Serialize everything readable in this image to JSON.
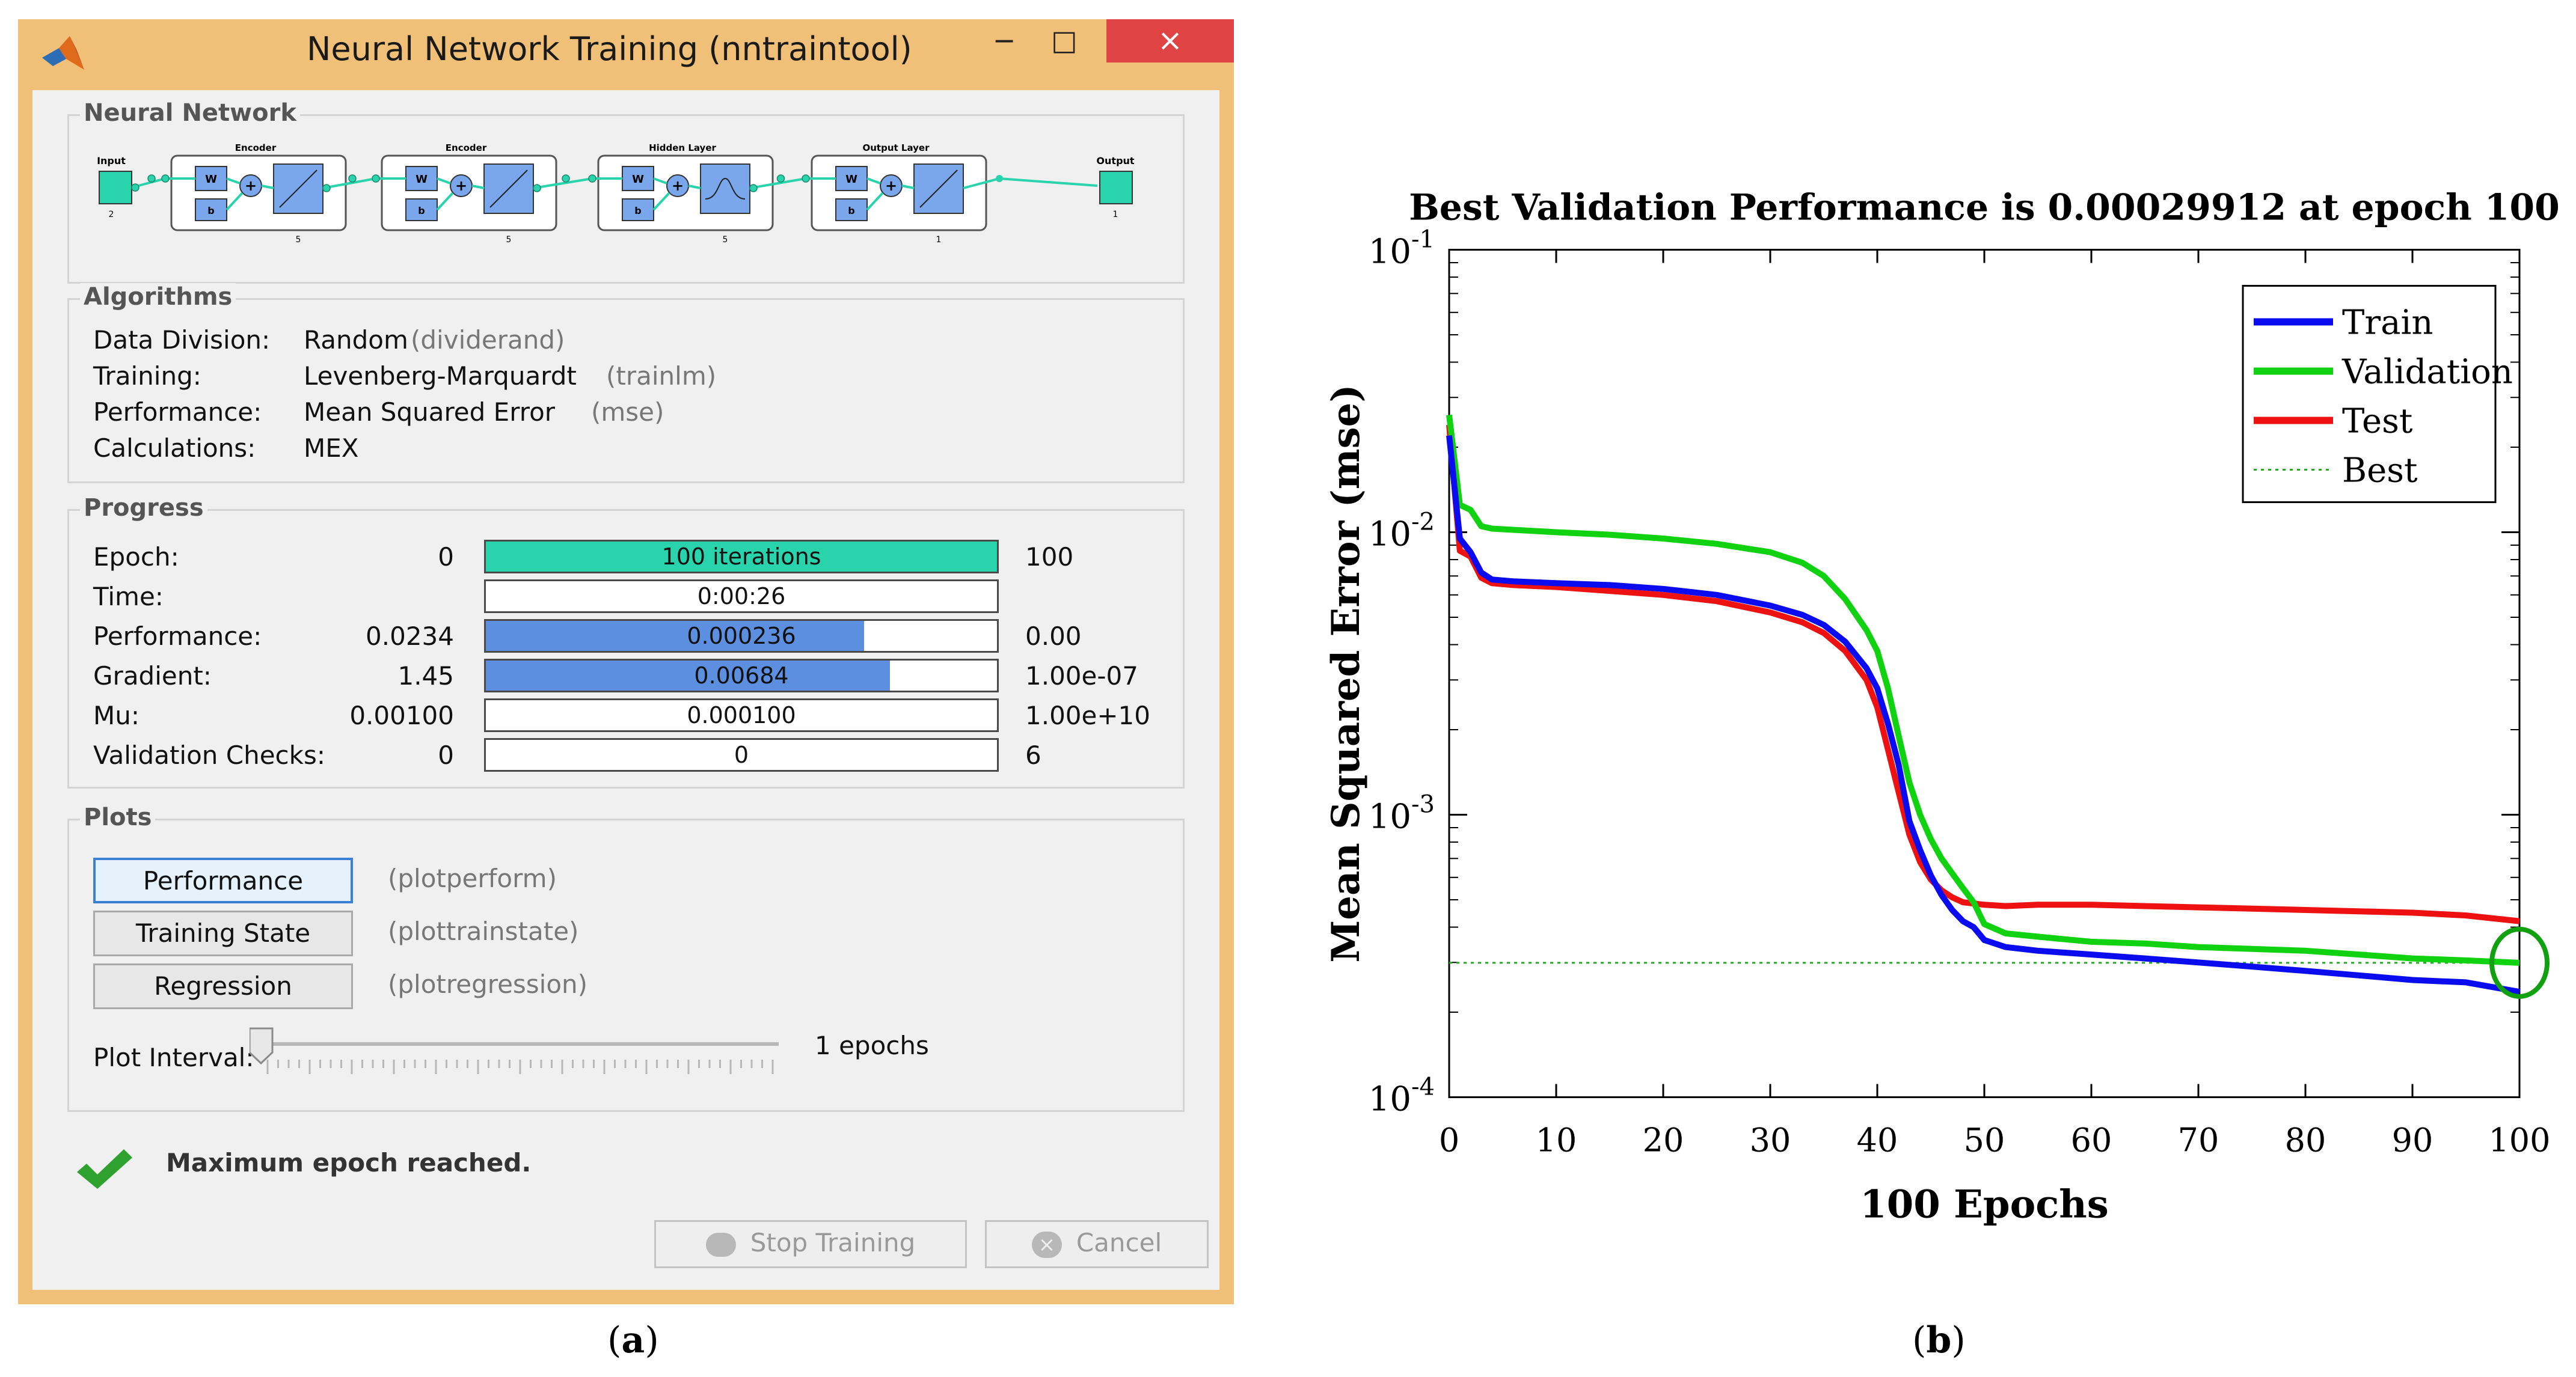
{
  "window": {
    "title": "Neural Network Training (nntraintool)",
    "controls": {
      "minimize": "−",
      "maximize": "□",
      "close": "×"
    }
  },
  "network": {
    "title": "Neural Network",
    "input_label": "Input",
    "input_size": "2",
    "output_label": "Output",
    "output_size": "1",
    "layers": [
      {
        "name": "Encoder",
        "size": "5",
        "transfer": "linear"
      },
      {
        "name": "Encoder",
        "size": "5",
        "transfer": "linear"
      },
      {
        "name": "Hidden Layer",
        "size": "5",
        "transfer": "tansig"
      },
      {
        "name": "Output Layer",
        "size": "1",
        "transfer": "linear"
      }
    ],
    "w_label": "W",
    "b_label": "b",
    "plus_label": "+"
  },
  "algorithms": {
    "title": "Algorithms",
    "rows": [
      {
        "label": "Data Division:",
        "value": "Random",
        "func": "(dividerand)"
      },
      {
        "label": "Training:",
        "value": "Levenberg-Marquardt",
        "func": "(trainlm)"
      },
      {
        "label": "Performance:",
        "value": "Mean Squared Error",
        "func": "(mse)"
      },
      {
        "label": "Calculations:",
        "value": "MEX",
        "func": ""
      }
    ]
  },
  "progress": {
    "title": "Progress",
    "rows": [
      {
        "label": "Epoch:",
        "start": "0",
        "current": "100 iterations",
        "end": "100",
        "fraction": 1.0,
        "color": "#29d3ab"
      },
      {
        "label": "Time:",
        "start": "",
        "current": "0:00:26",
        "end": "",
        "fraction": 0,
        "color": "#ffffff"
      },
      {
        "label": "Performance:",
        "start": "0.0234",
        "current": "0.000236",
        "end": "0.00",
        "fraction": 0.74,
        "color": "#5d8fe0"
      },
      {
        "label": "Gradient:",
        "start": "1.45",
        "current": "0.00684",
        "end": "1.00e-07",
        "fraction": 0.79,
        "color": "#5d8fe0"
      },
      {
        "label": "Mu:",
        "start": "0.00100",
        "current": "0.000100",
        "end": "1.00e+10",
        "fraction": 0,
        "color": "#ffffff"
      },
      {
        "label": "Validation Checks:",
        "start": "0",
        "current": "0",
        "end": "6",
        "fraction": 0,
        "color": "#ffffff"
      }
    ]
  },
  "plots": {
    "title": "Plots",
    "buttons": [
      {
        "label": "Performance",
        "func": "(plotperform)"
      },
      {
        "label": "Training State",
        "func": "(plottrainstate)"
      },
      {
        "label": "Regression",
        "func": "(plotregression)"
      }
    ],
    "interval_label": "Plot Interval:",
    "interval_value": "1 epochs",
    "interval_fraction": 0.0
  },
  "status": {
    "message": "Maximum epoch reached."
  },
  "actions": {
    "stop": "Stop Training",
    "cancel": "Cancel"
  },
  "captions": {
    "a_open": "(",
    "a": "a",
    "a_close": ")",
    "b_open": "(",
    "b": "b",
    "b_close": ")"
  },
  "chart_data": {
    "type": "line",
    "title": "Best Validation Performance is 0.00029912 at epoch 100",
    "xlabel": "100 Epochs",
    "ylabel": "Mean Squared Error  (mse)",
    "yscale": "log",
    "xlim": [
      0,
      100
    ],
    "ylim": [
      0.0001,
      0.1
    ],
    "xticks": [
      "0",
      "10",
      "20",
      "30",
      "40",
      "50",
      "60",
      "70",
      "80",
      "90",
      "100"
    ],
    "yticks": [
      {
        "base": "10",
        "exp": "-1",
        "value": 0.1
      },
      {
        "base": "10",
        "exp": "-2",
        "value": 0.01
      },
      {
        "base": "10",
        "exp": "-3",
        "value": 0.001
      },
      {
        "base": "10",
        "exp": "-4",
        "value": 0.0001
      }
    ],
    "legend_position": "top-right",
    "best": {
      "epoch": 100,
      "value": 0.00029912
    },
    "series": [
      {
        "name": "Train",
        "color": "#0b0bf0",
        "x": [
          0,
          1,
          2,
          3,
          4,
          6,
          10,
          15,
          20,
          25,
          30,
          33,
          35,
          37,
          39,
          40,
          41,
          42,
          43,
          44,
          45,
          46,
          47,
          48,
          49,
          50,
          52,
          55,
          60,
          65,
          70,
          75,
          80,
          85,
          90,
          95,
          100
        ],
        "y": [
          0.022,
          0.0095,
          0.0085,
          0.0072,
          0.0068,
          0.0067,
          0.0066,
          0.0065,
          0.0063,
          0.006,
          0.0055,
          0.0051,
          0.0047,
          0.0041,
          0.0033,
          0.0028,
          0.0021,
          0.0015,
          0.00095,
          0.00075,
          0.00061,
          0.00052,
          0.00046,
          0.00042,
          0.0004,
          0.00036,
          0.00034,
          0.00033,
          0.00032,
          0.00031,
          0.0003,
          0.00029,
          0.00028,
          0.00027,
          0.00026,
          0.000255,
          0.000236
        ]
      },
      {
        "name": "Validation",
        "color": "#10d210",
        "x": [
          0,
          1,
          2,
          3,
          4,
          6,
          10,
          15,
          20,
          25,
          30,
          33,
          35,
          37,
          39,
          40,
          41,
          42,
          43,
          44,
          45,
          46,
          47,
          48,
          49,
          50,
          52,
          55,
          60,
          65,
          70,
          75,
          80,
          85,
          90,
          95,
          100
        ],
        "y": [
          0.026,
          0.0125,
          0.012,
          0.0105,
          0.0103,
          0.0102,
          0.01,
          0.0098,
          0.0095,
          0.0091,
          0.0085,
          0.0078,
          0.007,
          0.0058,
          0.0045,
          0.0038,
          0.0028,
          0.0019,
          0.0013,
          0.001,
          0.00082,
          0.0007,
          0.00062,
          0.00055,
          0.00049,
          0.00041,
          0.00038,
          0.00037,
          0.000355,
          0.00035,
          0.00034,
          0.000335,
          0.00033,
          0.00032,
          0.00031,
          0.000305,
          0.00029912
        ]
      },
      {
        "name": "Test",
        "color": "#ee1111",
        "x": [
          0,
          1,
          2,
          3,
          4,
          6,
          10,
          15,
          20,
          25,
          30,
          33,
          35,
          37,
          39,
          40,
          41,
          42,
          43,
          44,
          45,
          46,
          47,
          48,
          49,
          50,
          52,
          55,
          60,
          65,
          70,
          75,
          80,
          85,
          90,
          95,
          100
        ],
        "y": [
          0.024,
          0.0086,
          0.0082,
          0.0069,
          0.0066,
          0.0065,
          0.0064,
          0.0062,
          0.006,
          0.0057,
          0.0052,
          0.0048,
          0.0044,
          0.0038,
          0.003,
          0.0024,
          0.0017,
          0.0012,
          0.00085,
          0.00068,
          0.00059,
          0.00054,
          0.00051,
          0.00049,
          0.000485,
          0.00048,
          0.000475,
          0.00048,
          0.00048,
          0.000475,
          0.00047,
          0.000465,
          0.00046,
          0.000455,
          0.00045,
          0.00044,
          0.00042
        ]
      }
    ],
    "best_line": {
      "name": "Best",
      "color": "#22aa22",
      "style": "dotted"
    }
  }
}
